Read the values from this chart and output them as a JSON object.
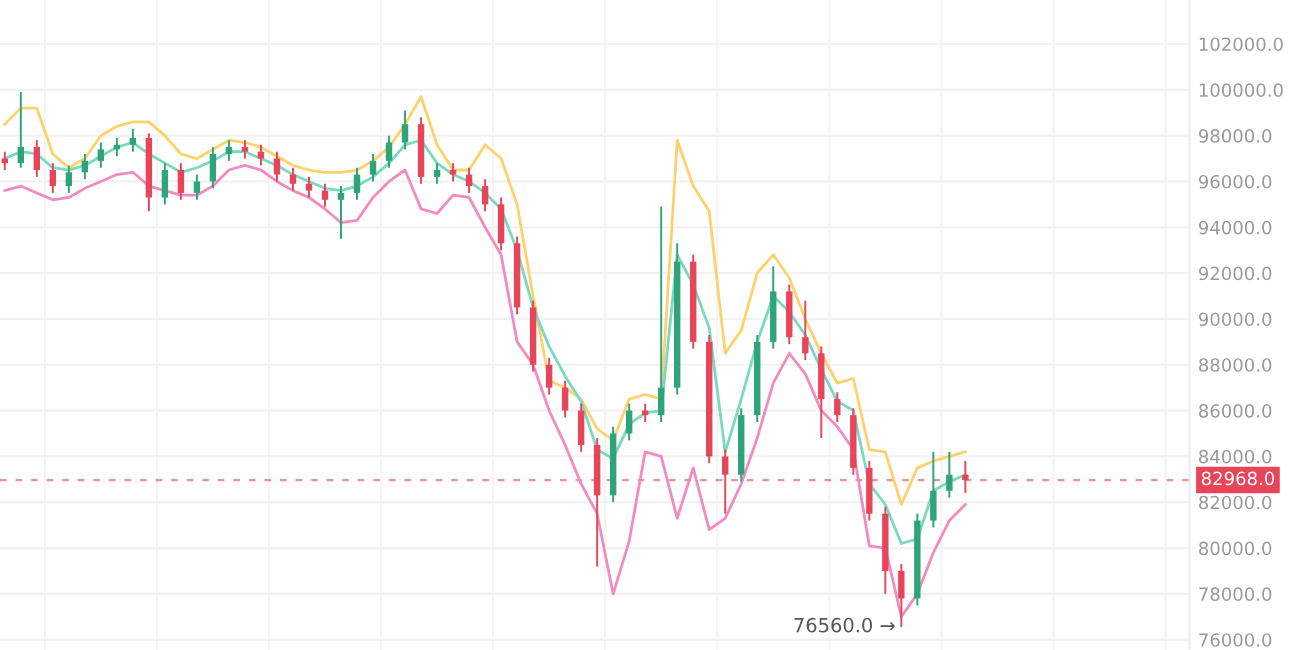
{
  "chart_data": {
    "type": "candlestick",
    "categories": [
      null,
      null,
      null,
      null,
      null,
      null,
      null,
      null,
      null,
      null,
      null,
      null,
      null,
      null,
      null,
      null,
      null,
      null,
      null,
      null,
      null,
      null,
      null,
      null,
      null,
      null,
      null,
      null,
      null,
      null,
      null,
      null,
      null,
      null,
      null,
      null,
      null,
      null,
      null,
      null,
      null,
      null,
      null,
      null,
      null,
      null,
      null,
      null,
      null,
      null,
      null,
      null,
      null,
      null,
      null,
      null,
      null,
      null,
      null,
      null,
      null
    ],
    "ohlc": [
      [
        97000,
        97300,
        96500,
        96800
      ],
      [
        96800,
        99900,
        96600,
        97500
      ],
      [
        97500,
        97800,
        96200,
        96500
      ],
      [
        96500,
        96800,
        95500,
        95800
      ],
      [
        95800,
        96700,
        95500,
        96400
      ],
      [
        96400,
        97200,
        96100,
        96900
      ],
      [
        96900,
        97700,
        96600,
        97400
      ],
      [
        97400,
        97900,
        97100,
        97600
      ],
      [
        97600,
        98300,
        97300,
        97900
      ],
      [
        97900,
        98100,
        94700,
        95300
      ],
      [
        95300,
        96800,
        95000,
        96500
      ],
      [
        96500,
        96800,
        95200,
        95500
      ],
      [
        95500,
        96300,
        95200,
        96000
      ],
      [
        96000,
        97500,
        95700,
        97200
      ],
      [
        97200,
        97800,
        96900,
        97500
      ],
      [
        97500,
        97800,
        97000,
        97300
      ],
      [
        97300,
        97600,
        96700,
        97000
      ],
      [
        97000,
        97300,
        96000,
        96300
      ],
      [
        96300,
        96600,
        95600,
        95900
      ],
      [
        95900,
        96200,
        95300,
        95600
      ],
      [
        95600,
        95900,
        94900,
        95200
      ],
      [
        95200,
        95800,
        93500,
        95500
      ],
      [
        95500,
        96600,
        95200,
        96300
      ],
      [
        96300,
        97200,
        96000,
        96900
      ],
      [
        96900,
        98000,
        96600,
        97700
      ],
      [
        97700,
        99100,
        97400,
        98500
      ],
      [
        98500,
        98800,
        95900,
        96200
      ],
      [
        96200,
        96800,
        95900,
        96500
      ],
      [
        96500,
        96800,
        96000,
        96300
      ],
      [
        96300,
        96600,
        95500,
        95800
      ],
      [
        95800,
        96100,
        94700,
        95000
      ],
      [
        95000,
        95300,
        93000,
        93300
      ],
      [
        93300,
        93600,
        90200,
        90500
      ],
      [
        90500,
        90800,
        87700,
        88000
      ],
      [
        88000,
        88300,
        86700,
        87000
      ],
      [
        87000,
        87300,
        85700,
        86000
      ],
      [
        86000,
        86300,
        84200,
        84500
      ],
      [
        84500,
        84800,
        79200,
        82300
      ],
      [
        82300,
        85300,
        82000,
        85000
      ],
      [
        85000,
        86300,
        84700,
        86000
      ],
      [
        86000,
        86300,
        85500,
        85800
      ],
      [
        85800,
        94900,
        85500,
        87000
      ],
      [
        87000,
        93300,
        86700,
        92500
      ],
      [
        92500,
        92800,
        88700,
        89000
      ],
      [
        89000,
        89300,
        83700,
        84000
      ],
      [
        84000,
        84300,
        81500,
        83200
      ],
      [
        83200,
        86100,
        82900,
        85800
      ],
      [
        85800,
        89300,
        85500,
        89000
      ],
      [
        89000,
        92300,
        88700,
        91200
      ],
      [
        91200,
        91500,
        88900,
        89200
      ],
      [
        89200,
        90800,
        88200,
        88500
      ],
      [
        88500,
        88800,
        84800,
        86500
      ],
      [
        86500,
        86800,
        85500,
        85800
      ],
      [
        85800,
        86100,
        83200,
        83500
      ],
      [
        83500,
        83800,
        81200,
        81500
      ],
      [
        81500,
        81800,
        78000,
        79000
      ],
      [
        79000,
        79300,
        76560,
        77800
      ],
      [
        77800,
        81500,
        77500,
        81200
      ],
      [
        81200,
        84200,
        80900,
        82500
      ],
      [
        82500,
        84200,
        82200,
        83200
      ],
      [
        83200,
        83800,
        82400,
        82968
      ]
    ],
    "series": [
      {
        "type": "line",
        "color": "#fdd26c",
        "values": [
          98500,
          99200,
          99200,
          97200,
          96600,
          97000,
          98000,
          98400,
          98600,
          98600,
          98000,
          97200,
          97000,
          97400,
          97800,
          97700,
          97500,
          97100,
          96700,
          96500,
          96400,
          96400,
          96500,
          96900,
          97500,
          98500,
          99700,
          97600,
          96500,
          96500,
          97600,
          97000,
          95000,
          91000,
          87300,
          87000,
          86500,
          85200,
          84700,
          86500,
          86700,
          86500,
          97800,
          95800,
          94700,
          88500,
          89500,
          92000,
          92800,
          91800,
          90000,
          88500,
          87200,
          87400,
          84300,
          84200,
          81900,
          83500,
          83800,
          84000,
          84200
        ]
      },
      {
        "type": "line",
        "color": "#7ad9c0",
        "values": [
          97000,
          97300,
          97200,
          96600,
          96500,
          96700,
          97100,
          97500,
          97700,
          97200,
          96800,
          96400,
          96600,
          96900,
          97300,
          97300,
          97000,
          96700,
          96300,
          96000,
          95700,
          95600,
          95800,
          96200,
          96800,
          97600,
          97800,
          96800,
          96300,
          96000,
          95500,
          94800,
          93000,
          90500,
          88800,
          87500,
          86400,
          84300,
          83900,
          85400,
          85900,
          86000,
          92800,
          91500,
          89600,
          84200,
          86500,
          89000,
          91000,
          90300,
          89300,
          87800,
          86400,
          86000,
          82800,
          81900,
          80200,
          80400,
          82500,
          82900,
          83200
        ]
      },
      {
        "type": "line",
        "color": "#f28cc0",
        "values": [
          95600,
          95800,
          95500,
          95200,
          95300,
          95700,
          96000,
          96300,
          96400,
          95800,
          95600,
          95400,
          95400,
          95800,
          96500,
          96700,
          96500,
          96000,
          95600,
          95300,
          94800,
          94200,
          94300,
          95300,
          96000,
          96500,
          94800,
          94600,
          95400,
          95300,
          94000,
          92800,
          89000,
          88000,
          86000,
          84500,
          82800,
          81500,
          78000,
          80300,
          84200,
          84000,
          81300,
          83500,
          80800,
          81300,
          82800,
          84800,
          87200,
          88500,
          87600,
          86000,
          85300,
          84300,
          80100,
          80000,
          77000,
          78000,
          79800,
          81200,
          81900
        ]
      }
    ],
    "ylim": [
      75550,
      103920
    ],
    "yticks": [
      {
        "value": 76000,
        "label": "76000.0"
      },
      {
        "value": 78000,
        "label": "78000.0"
      },
      {
        "value": 80000,
        "label": "80000.0"
      },
      {
        "value": 82000,
        "label": "82000.0"
      },
      {
        "value": 84000,
        "label": "84000.0"
      },
      {
        "value": 86000,
        "label": "86000.0"
      },
      {
        "value": 88000,
        "label": "88000.0"
      },
      {
        "value": 90000,
        "label": "90000.0"
      },
      {
        "value": 92000,
        "label": "92000.0"
      },
      {
        "value": 94000,
        "label": "94000.0"
      },
      {
        "value": 96000,
        "label": "96000.0"
      },
      {
        "value": 98000,
        "label": "98000.0"
      },
      {
        "value": 100000,
        "label": "100000.0"
      },
      {
        "value": 102000,
        "label": "102000.0"
      }
    ],
    "ref_lines": [
      {
        "axis": "y",
        "value": 82968,
        "label": "82968.0",
        "color": "#e8455a",
        "line_style": "dashed"
      }
    ],
    "annotations": [
      "76560.0 →"
    ],
    "grid": true,
    "legend": false
  }
}
